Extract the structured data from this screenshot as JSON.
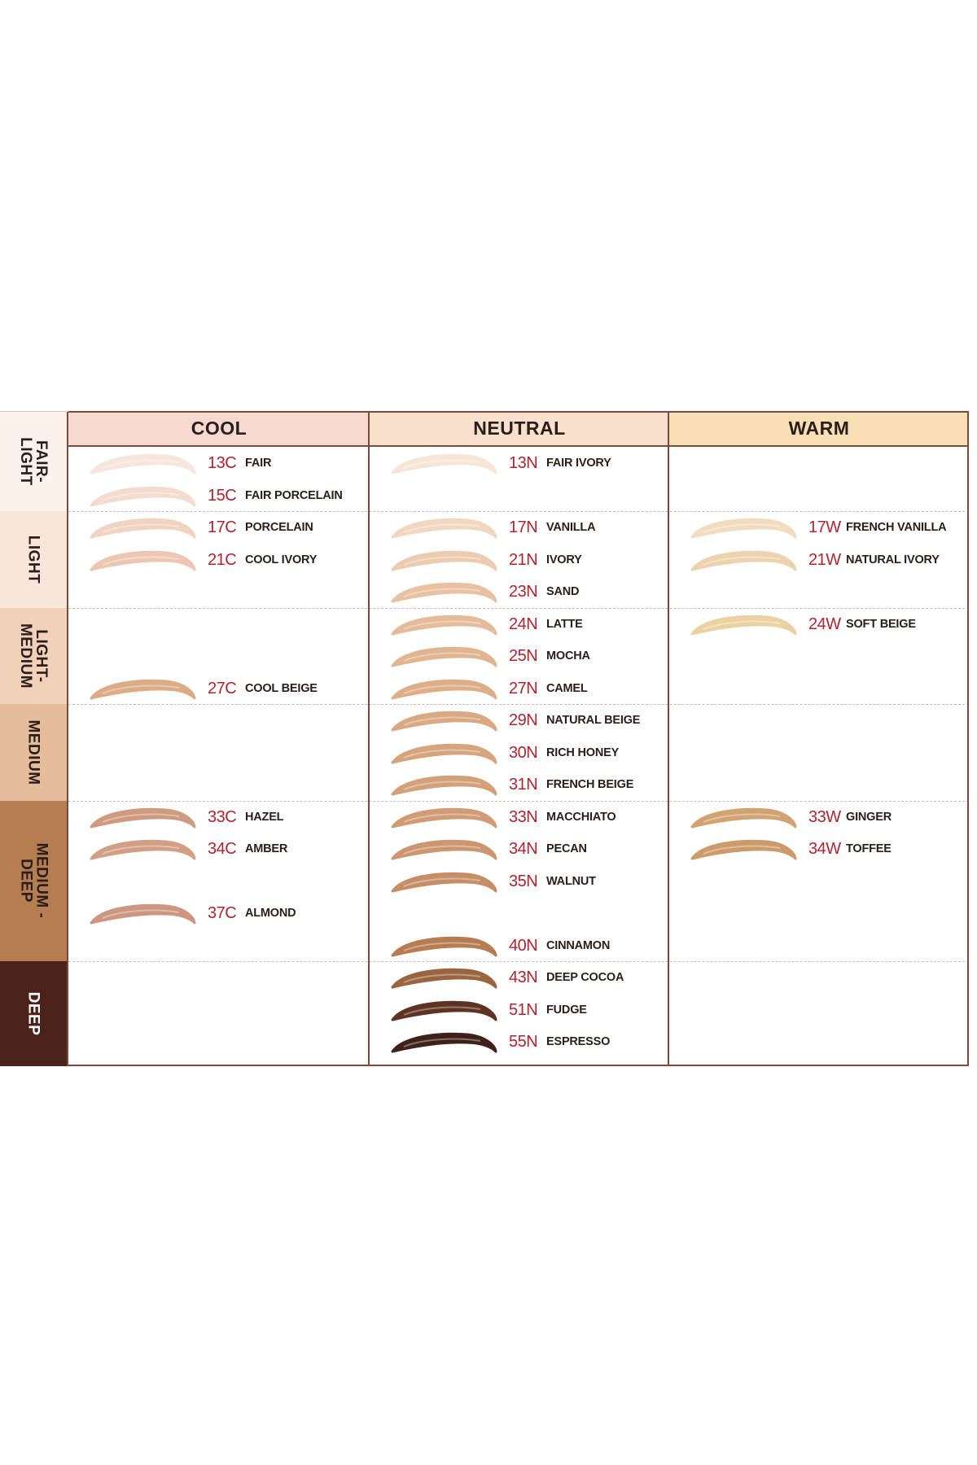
{
  "columns": [
    {
      "key": "cool",
      "label": "COOL",
      "color": "#f6d9cf"
    },
    {
      "key": "neutral",
      "label": "NEUTRAL",
      "color": "#f8e0cc"
    },
    {
      "key": "warm",
      "label": "WARM",
      "color": "#f8dfb6"
    }
  ],
  "bands": [
    {
      "key": "fair-light",
      "label": "FAIR-\nLIGHT",
      "color": "#fbf2ec",
      "text_color": "#2b1d1a"
    },
    {
      "key": "light",
      "label": "LIGHT",
      "color": "#f8e6da",
      "text_color": "#2b1d1a"
    },
    {
      "key": "light-medium",
      "label": "LIGHT-\nMEDIUM",
      "color": "#f1d2b9",
      "text_color": "#2b1d1a"
    },
    {
      "key": "medium",
      "label": "MEDIUM",
      "color": "#e6bd9a",
      "text_color": "#2b1d1a"
    },
    {
      "key": "medium-deep",
      "label": "MEDIUM -\nDEEP",
      "color": "#b47d52",
      "text_color": "#2b1d1a"
    },
    {
      "key": "deep",
      "label": "DEEP",
      "color": "#4a2219",
      "text_color": "#ffffff"
    }
  ],
  "shades": [
    {
      "col": "cool",
      "row": 0,
      "code": "13C",
      "name": "FAIR",
      "color": "#f6e6de"
    },
    {
      "col": "cool",
      "row": 1,
      "code": "15C",
      "name": "FAIR PORCELAIN",
      "color": "#f4dccf"
    },
    {
      "col": "cool",
      "row": 2,
      "code": "17C",
      "name": "PORCELAIN",
      "color": "#f0d3c1"
    },
    {
      "col": "cool",
      "row": 3,
      "code": "21C",
      "name": "COOL IVORY",
      "color": "#ecc6b1"
    },
    {
      "col": "cool",
      "row": 7,
      "code": "27C",
      "name": "COOL BEIGE",
      "color": "#dcac86"
    },
    {
      "col": "cool",
      "row": 11,
      "code": "33C",
      "name": "HAZEL",
      "color": "#cf9a7f"
    },
    {
      "col": "cool",
      "row": 12,
      "code": "34C",
      "name": "AMBER",
      "color": "#d29f85"
    },
    {
      "col": "cool",
      "row": 14,
      "code": "37C",
      "name": "ALMOND",
      "color": "#cd9680"
    },
    {
      "col": "neutral",
      "row": 0,
      "code": "13N",
      "name": "FAIR IVORY",
      "color": "#f5e6d8"
    },
    {
      "col": "neutral",
      "row": 2,
      "code": "17N",
      "name": "VANILLA",
      "color": "#f2d7c0"
    },
    {
      "col": "neutral",
      "row": 3,
      "code": "21N",
      "name": "IVORY",
      "color": "#eccbb0"
    },
    {
      "col": "neutral",
      "row": 4,
      "code": "23N",
      "name": "SAND",
      "color": "#e8c1a2"
    },
    {
      "col": "neutral",
      "row": 5,
      "code": "24N",
      "name": "LATTE",
      "color": "#e5bb9a"
    },
    {
      "col": "neutral",
      "row": 6,
      "code": "25N",
      "name": "MOCHA",
      "color": "#e1b592"
    },
    {
      "col": "neutral",
      "row": 7,
      "code": "27N",
      "name": "CAMEL",
      "color": "#ddae87"
    },
    {
      "col": "neutral",
      "row": 8,
      "code": "29N",
      "name": "NATURAL BEIGE",
      "color": "#d9a983"
    },
    {
      "col": "neutral",
      "row": 9,
      "code": "30N",
      "name": "RICH HONEY",
      "color": "#d6a57e"
    },
    {
      "col": "neutral",
      "row": 10,
      "code": "31N",
      "name": "FRENCH BEIGE",
      "color": "#d3a07a"
    },
    {
      "col": "neutral",
      "row": 11,
      "code": "33N",
      "name": "MACCHIATO",
      "color": "#d09b75"
    },
    {
      "col": "neutral",
      "row": 12,
      "code": "34N",
      "name": "PECAN",
      "color": "#cc9670"
    },
    {
      "col": "neutral",
      "row": 13,
      "code": "35N",
      "name": "WALNUT",
      "color": "#c68e66"
    },
    {
      "col": "neutral",
      "row": 15,
      "code": "40N",
      "name": "CINNAMON",
      "color": "#b77c52"
    },
    {
      "col": "neutral",
      "row": 16,
      "code": "43N",
      "name": "DEEP COCOA",
      "color": "#9a6440"
    },
    {
      "col": "neutral",
      "row": 17,
      "code": "51N",
      "name": "FUDGE",
      "color": "#5e3322"
    },
    {
      "col": "neutral",
      "row": 18,
      "code": "55N",
      "name": "ESPRESSO",
      "color": "#3e221a"
    },
    {
      "col": "warm",
      "row": 2,
      "code": "17W",
      "name": "FRENCH VANILLA",
      "color": "#f2dcc0"
    },
    {
      "col": "warm",
      "row": 3,
      "code": "21W",
      "name": "NATURAL IVORY",
      "color": "#ecd3ad"
    },
    {
      "col": "warm",
      "row": 5,
      "code": "24W",
      "name": "SOFT BEIGE",
      "color": "#ecd2a2"
    },
    {
      "col": "warm",
      "row": 11,
      "code": "33W",
      "name": "GINGER",
      "color": "#d1a272"
    },
    {
      "col": "warm",
      "row": 12,
      "code": "34W",
      "name": "TOFFEE",
      "color": "#cc9b6c"
    }
  ]
}
